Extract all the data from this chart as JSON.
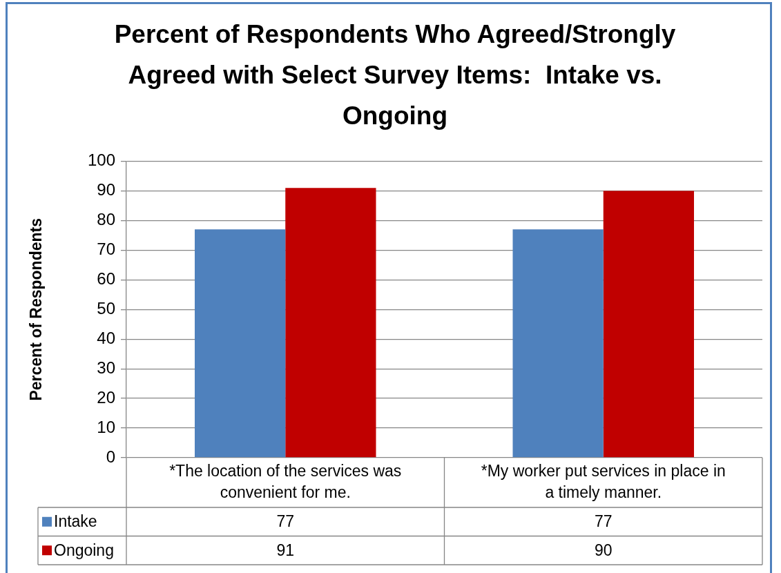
{
  "chart_data": {
    "type": "bar",
    "title": "Percent of Respondents Who Agreed/Strongly Agreed with Select Survey Items:  Intake vs. Ongoing",
    "ylabel": "Percent of Respondents",
    "categories": [
      "*The location of the services was convenient for me.",
      "*My worker put services in place in a timely manner."
    ],
    "series": [
      {
        "name": "Intake",
        "color": "#4f81bd",
        "values": [
          77,
          77
        ]
      },
      {
        "name": "Ongoing",
        "color": "#c00000",
        "values": [
          91,
          90
        ]
      }
    ],
    "ylim": [
      0,
      100
    ],
    "yticks": [
      0,
      10,
      20,
      30,
      40,
      50,
      60,
      70,
      80,
      90,
      100
    ],
    "grid": "y",
    "legend": "bottom left",
    "data_labels": true
  }
}
